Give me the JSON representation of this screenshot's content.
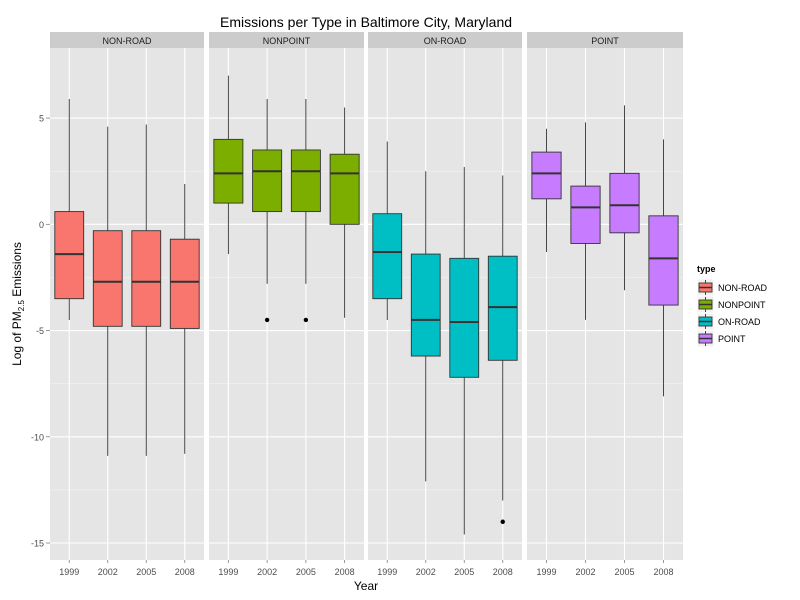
{
  "chart_data": {
    "type": "boxplot",
    "title": "Emissions per Type in Baltimore City, Maryland",
    "xlabel": "Year",
    "ylabel": {
      "prefix": "Log of PM",
      "subscript": "2.5",
      "suffix": " Emissions"
    },
    "ylim": [
      -15.8,
      8.3
    ],
    "yticks": [
      5,
      0,
      -5,
      -10,
      -15
    ],
    "categories": [
      "1999",
      "2002",
      "2005",
      "2008"
    ],
    "grid": true,
    "legend": {
      "title": "type",
      "position": "right",
      "entries": [
        "NON-ROAD",
        "NONPOINT",
        "ON-ROAD",
        "POINT"
      ]
    },
    "colors": {
      "NON-ROAD": "#F8766D",
      "NONPOINT": "#7CAE00",
      "ON-ROAD": "#00BFC4",
      "POINT": "#C77CFF",
      "panel_bg": "#E5E5E5",
      "strip_bg": "#CCCCCC"
    },
    "panels": [
      {
        "name": "NON-ROAD",
        "boxes": [
          {
            "year": "1999",
            "min": -4.5,
            "q1": -3.5,
            "median": -1.4,
            "q3": 0.6,
            "max": 5.9,
            "outliers": []
          },
          {
            "year": "2002",
            "min": -10.9,
            "q1": -4.8,
            "median": -2.7,
            "q3": -0.3,
            "max": 4.6,
            "outliers": []
          },
          {
            "year": "2005",
            "min": -10.9,
            "q1": -4.8,
            "median": -2.7,
            "q3": -0.3,
            "max": 4.7,
            "outliers": []
          },
          {
            "year": "2008",
            "min": -10.8,
            "q1": -4.9,
            "median": -2.7,
            "q3": -0.7,
            "max": 1.9,
            "outliers": []
          }
        ]
      },
      {
        "name": "NONPOINT",
        "boxes": [
          {
            "year": "1999",
            "min": -1.4,
            "q1": 1.0,
            "median": 2.4,
            "q3": 4.0,
            "max": 7.0,
            "outliers": []
          },
          {
            "year": "2002",
            "min": -2.8,
            "q1": 0.6,
            "median": 2.5,
            "q3": 3.5,
            "max": 5.9,
            "outliers": [
              -4.5
            ]
          },
          {
            "year": "2005",
            "min": -2.8,
            "q1": 0.6,
            "median": 2.5,
            "q3": 3.5,
            "max": 5.9,
            "outliers": [
              -4.5
            ]
          },
          {
            "year": "2008",
            "min": -4.4,
            "q1": 0.0,
            "median": 2.4,
            "q3": 3.3,
            "max": 5.5,
            "outliers": []
          }
        ]
      },
      {
        "name": "ON-ROAD",
        "boxes": [
          {
            "year": "1999",
            "min": -4.5,
            "q1": -3.5,
            "median": -1.3,
            "q3": 0.5,
            "max": 3.9,
            "outliers": []
          },
          {
            "year": "2002",
            "min": -12.1,
            "q1": -6.2,
            "median": -4.5,
            "q3": -1.4,
            "max": 2.5,
            "outliers": []
          },
          {
            "year": "2005",
            "min": -14.6,
            "q1": -7.2,
            "median": -4.6,
            "q3": -1.6,
            "max": 2.7,
            "outliers": []
          },
          {
            "year": "2008",
            "min": -13.0,
            "q1": -6.4,
            "median": -3.9,
            "q3": -1.5,
            "max": 2.3,
            "outliers": [
              -14.0
            ]
          }
        ]
      },
      {
        "name": "POINT",
        "boxes": [
          {
            "year": "1999",
            "min": -1.3,
            "q1": 1.2,
            "median": 2.4,
            "q3": 3.4,
            "max": 4.5,
            "outliers": []
          },
          {
            "year": "2002",
            "min": -4.5,
            "q1": -0.9,
            "median": 0.8,
            "q3": 1.8,
            "max": 4.8,
            "outliers": []
          },
          {
            "year": "2005",
            "min": -3.1,
            "q1": -0.4,
            "median": 0.9,
            "q3": 2.4,
            "max": 5.6,
            "outliers": []
          },
          {
            "year": "2008",
            "min": -8.1,
            "q1": -3.8,
            "median": -1.6,
            "q3": 0.4,
            "max": 4.0,
            "outliers": []
          }
        ]
      }
    ]
  }
}
